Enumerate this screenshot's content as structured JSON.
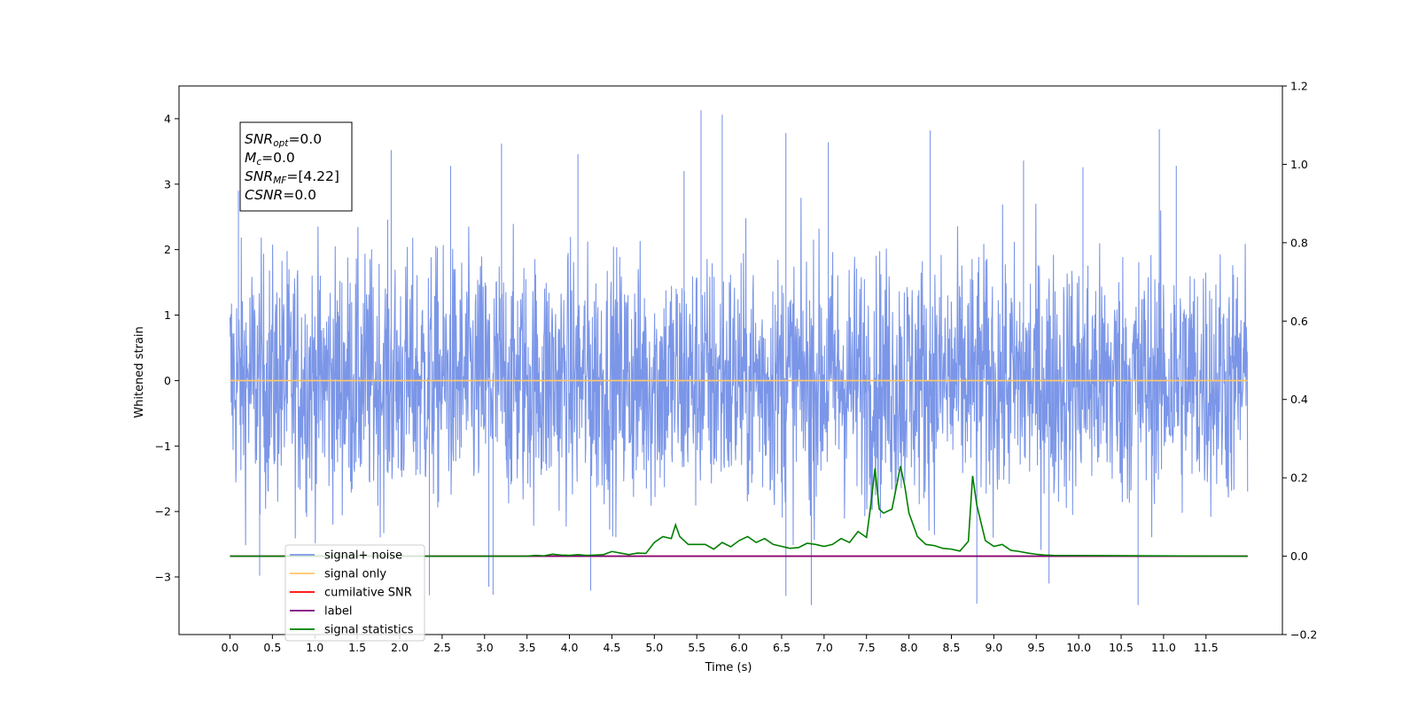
{
  "chart_data": {
    "type": "line",
    "title": "",
    "xlabel": "Time (s)",
    "ylabel": "Whitened strain",
    "xlim": [
      -0.6,
      12.4
    ],
    "ylim": [
      -3.88,
      4.5
    ],
    "y2lim": [
      -0.2,
      1.2
    ],
    "grid": false,
    "legend_placement": "lower-left",
    "x_ticks": [
      0.0,
      0.5,
      1.0,
      1.5,
      2.0,
      2.5,
      3.0,
      3.5,
      4.0,
      4.5,
      5.0,
      5.5,
      6.0,
      6.5,
      7.0,
      7.5,
      8.0,
      8.5,
      9.0,
      9.5,
      10.0,
      10.5,
      11.0,
      11.5
    ],
    "x_tick_labels": [
      "0.0",
      "0.5",
      "1.0",
      "1.5",
      "2.0",
      "2.5",
      "3.0",
      "3.5",
      "4.0",
      "4.5",
      "5.0",
      "5.5",
      "6.0",
      "6.5",
      "7.0",
      "7.5",
      "8.0",
      "8.5",
      "9.0",
      "9.5",
      "10.0",
      "10.5",
      "11.0",
      "11.5"
    ],
    "y_ticks": [
      4,
      3,
      2,
      1,
      0,
      -1,
      -2,
      -3
    ],
    "y_tick_labels": [
      "4",
      "3",
      "2",
      "1",
      "0",
      "−1",
      "−2",
      "−3"
    ],
    "y2_ticks": [
      1.2,
      1.0,
      0.8,
      0.6,
      0.4,
      0.2,
      0.0,
      -0.2
    ],
    "y2_tick_labels": [
      "1.2",
      "1.0",
      "0.8",
      "0.6",
      "0.4",
      "0.2",
      "0.0",
      "−0.2"
    ],
    "annotation": [
      {
        "main": "SNR",
        "sub": "opt",
        "rest": "=0.0"
      },
      {
        "main": "M",
        "sub": "c",
        "rest": "=0.0"
      },
      {
        "main": "SNR",
        "sub": "MF",
        "rest": "=[4.22]"
      },
      {
        "main": "CSNR",
        "sub": "",
        "rest": "=0.0"
      }
    ],
    "series": [
      {
        "name": "signal+ noise",
        "color": "#7b96e8",
        "axis": "left",
        "kind": "noise",
        "x_range": [
          0.0,
          11.99
        ],
        "y_range": [
          -3.43,
          4.13
        ],
        "spikes": [
          [
            5.55,
            4.13
          ],
          [
            5.8,
            4.06
          ],
          [
            1.9,
            3.52
          ],
          [
            2.6,
            3.28
          ],
          [
            3.2,
            3.62
          ],
          [
            4.1,
            3.46
          ],
          [
            6.55,
            3.78
          ],
          [
            7.05,
            3.64
          ],
          [
            8.25,
            3.82
          ],
          [
            9.35,
            3.36
          ],
          [
            10.05,
            3.26
          ],
          [
            10.95,
            3.84
          ],
          [
            11.15,
            3.28
          ],
          [
            5.35,
            3.2
          ],
          [
            0.1,
            2.9
          ],
          [
            6.85,
            -3.43
          ],
          [
            9.65,
            -3.1
          ],
          [
            3.1,
            -3.27
          ],
          [
            4.25,
            -3.21
          ],
          [
            6.55,
            -3.29
          ],
          [
            8.8,
            -3.41
          ],
          [
            10.7,
            -3.43
          ],
          [
            2.35,
            -3.28
          ],
          [
            3.05,
            -3.15
          ],
          [
            0.35,
            -2.98
          ]
        ]
      },
      {
        "name": "signal only",
        "color": "#ffc766",
        "axis": "left",
        "x": [
          0.0,
          11.99
        ],
        "y": [
          0.0,
          0.0
        ]
      },
      {
        "name": "cumilative SNR",
        "color": "#ff0000",
        "axis": "right",
        "x": [
          0.0,
          11.99
        ],
        "y": [
          0.0,
          0.0
        ]
      },
      {
        "name": "label",
        "color": "#7a007a",
        "axis": "right",
        "x": [
          0.0,
          11.99
        ],
        "y": [
          0.0,
          0.0
        ]
      },
      {
        "name": "signal statistics",
        "color": "#007f00",
        "axis": "right",
        "x": [
          0.0,
          3.5,
          3.6,
          3.7,
          3.8,
          3.9,
          4.0,
          4.1,
          4.2,
          4.3,
          4.4,
          4.5,
          4.6,
          4.7,
          4.8,
          4.9,
          5.0,
          5.1,
          5.2,
          5.25,
          5.3,
          5.4,
          5.5,
          5.6,
          5.7,
          5.8,
          5.9,
          6.0,
          6.1,
          6.2,
          6.3,
          6.4,
          6.5,
          6.6,
          6.7,
          6.8,
          6.9,
          7.0,
          7.1,
          7.2,
          7.3,
          7.4,
          7.5,
          7.55,
          7.6,
          7.65,
          7.7,
          7.8,
          7.9,
          7.95,
          8.0,
          8.1,
          8.2,
          8.3,
          8.4,
          8.5,
          8.6,
          8.7,
          8.75,
          8.8,
          8.9,
          9.0,
          9.1,
          9.2,
          9.3,
          9.4,
          9.5,
          9.6,
          9.7,
          11.99
        ],
        "y": [
          0.0,
          0.0,
          0.002,
          0.001,
          0.005,
          0.003,
          0.002,
          0.004,
          0.002,
          0.003,
          0.004,
          0.012,
          0.008,
          0.004,
          0.008,
          0.007,
          0.035,
          0.05,
          0.045,
          0.08,
          0.05,
          0.03,
          0.03,
          0.03,
          0.018,
          0.035,
          0.024,
          0.04,
          0.05,
          0.035,
          0.045,
          0.03,
          0.025,
          0.02,
          0.022,
          0.033,
          0.03,
          0.025,
          0.03,
          0.045,
          0.035,
          0.063,
          0.048,
          0.13,
          0.224,
          0.12,
          0.11,
          0.12,
          0.23,
          0.18,
          0.11,
          0.05,
          0.03,
          0.027,
          0.02,
          0.018,
          0.013,
          0.038,
          0.205,
          0.13,
          0.04,
          0.025,
          0.03,
          0.015,
          0.012,
          0.008,
          0.005,
          0.003,
          0.002,
          0.0
        ]
      }
    ]
  }
}
